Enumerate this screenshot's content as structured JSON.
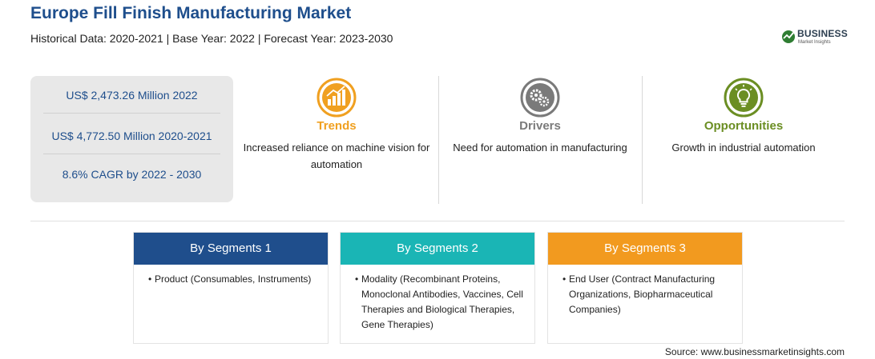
{
  "header": {
    "title": "Europe Fill Finish Manufacturing Market",
    "subtitle": "Historical Data: 2020-2021 | Base Year: 2022 | Forecast Year: 2023-2030"
  },
  "logo": {
    "brand": "BUSINESS",
    "sub": "Market Insights"
  },
  "stats": [
    "US$ 2,473.26 Million 2022",
    "US$ 4,772.50 Million 2020-2021",
    "8.6% CAGR by 2022 - 2030"
  ],
  "features": [
    {
      "label": "Trends",
      "desc": "Increased reliance on machine vision for automation",
      "color": "#f0a020",
      "icon": "trend-chart-icon"
    },
    {
      "label": "Drivers",
      "desc": "Need for automation in manufacturing",
      "color": "#7a7a7a",
      "icon": "gears-icon"
    },
    {
      "label": "Opportunities",
      "desc": "Growth in industrial automation",
      "color": "#6b8e23",
      "icon": "lightbulb-icon"
    }
  ],
  "segments": [
    {
      "title": "By Segments 1",
      "color": "#1f4e8c",
      "items": [
        "Product (Consumables, Instruments)"
      ]
    },
    {
      "title": "By Segments 2",
      "color": "#1ab5b5",
      "items": [
        "Modality (Recombinant Proteins, Monoclonal Antibodies, Vaccines, Cell Therapies and Biological Therapies, Gene Therapies)"
      ]
    },
    {
      "title": "By Segments 3",
      "color": "#f29a1f",
      "items": [
        "End User (Contract Manufacturing Organizations, Biopharmaceutical Companies)"
      ]
    }
  ],
  "source": "Source: www.businessmarketinsights.com"
}
